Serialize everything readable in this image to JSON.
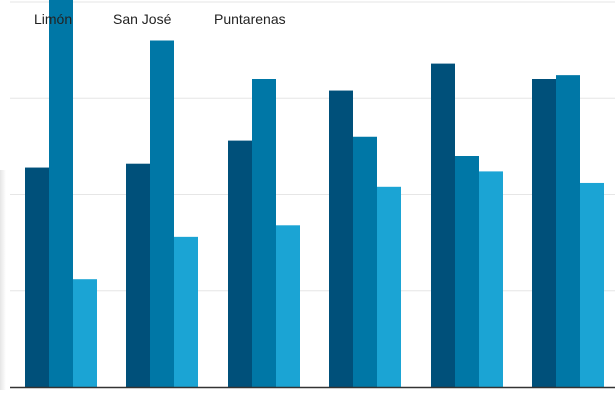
{
  "chart_data": {
    "type": "bar",
    "categories": [
      "",
      "",
      "",
      "",
      "",
      ""
    ],
    "series": [
      {
        "name": "Limón",
        "color": "#00507a",
        "values": [
          57,
          58,
          64,
          77,
          84,
          80
        ]
      },
      {
        "name": "San José",
        "color": "#0077a6",
        "values": [
          103,
          90,
          80,
          65,
          60,
          81
        ]
      },
      {
        "name": "Puntarenas",
        "color": "#1ba4d4",
        "values": [
          28,
          39,
          42,
          52,
          56,
          53
        ]
      }
    ],
    "title": "",
    "xlabel": "",
    "ylabel": "",
    "ylim": [
      0,
      100
    ],
    "grid": true,
    "legend_position": "top-left",
    "colors": {
      "gridline": "#e6e6e6",
      "axis": "#333333"
    }
  }
}
